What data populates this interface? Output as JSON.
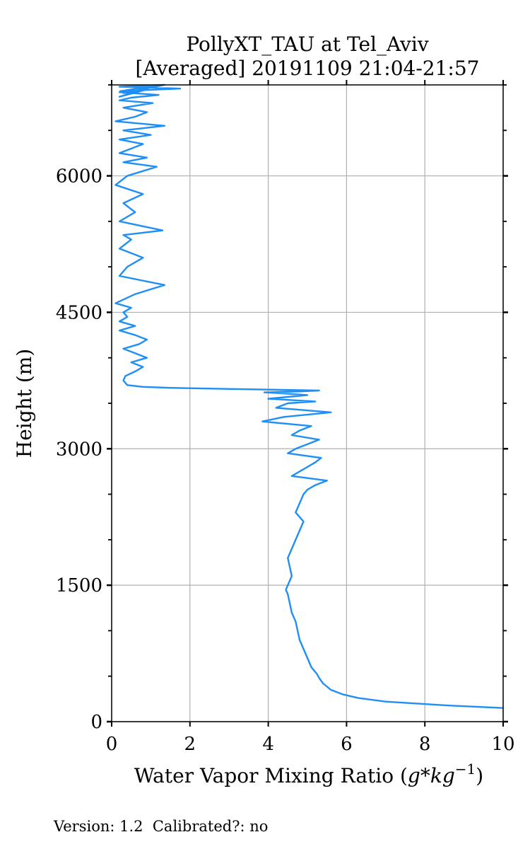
{
  "chart_data": {
    "type": "line",
    "title": "PollyXT_TAU at Tel_Aviv",
    "subtitle": "[Averaged] 20191109 21:04-21:57",
    "xlabel_text": "Water Vapor Mixing Ratio (",
    "xlabel_math": "g*kg",
    "xlabel_sup": "−1",
    "xlabel_close": ")",
    "ylabel": "Height (m)",
    "xlim": [
      0,
      10
    ],
    "ylim": [
      0,
      7000
    ],
    "xticks": [
      "0",
      "2",
      "4",
      "6",
      "8",
      "10"
    ],
    "yticks": [
      "0",
      "1500",
      "3000",
      "4500",
      "6000"
    ],
    "grid": true,
    "line_color": "#1f8ff5",
    "series": [
      {
        "x": [
          10.0,
          8.5,
          7.0,
          6.3,
          5.9,
          5.6,
          5.4,
          5.3,
          5.25,
          5.1,
          5.0,
          4.9,
          4.8,
          4.75,
          4.7,
          4.6,
          4.55,
          4.5,
          4.45,
          4.5,
          4.6,
          4.55,
          4.5,
          4.6,
          4.7,
          4.8,
          4.9,
          4.7,
          4.8,
          4.9,
          5.0,
          5.2,
          5.5,
          4.6,
          4.8,
          5.0,
          5.2,
          5.35,
          4.5,
          4.7,
          5.0,
          5.3,
          4.6,
          4.8,
          5.1,
          3.85,
          4.4,
          5.6,
          4.2,
          4.5,
          5.2,
          4.0,
          4.5,
          5.0,
          4.3,
          3.9,
          4.8,
          5.3,
          4.0,
          2.7,
          1.5,
          0.8,
          0.4,
          0.3,
          0.35,
          0.6,
          0.8,
          0.5,
          0.9,
          0.6,
          0.3,
          0.7,
          0.9,
          0.6,
          0.2,
          0.6,
          0.2,
          0.4,
          0.3,
          0.5,
          0.1,
          0.6,
          1.35,
          0.2,
          0.4,
          0.8,
          0.2,
          0.5,
          0.3,
          1.3,
          0.2,
          0.6,
          0.3,
          0.8,
          0.1,
          0.4,
          1.15,
          0.3,
          0.9,
          0.2,
          0.5,
          0.8,
          0.2,
          1.0,
          0.3,
          1.35,
          0.1,
          0.6,
          0.9,
          0.3,
          1.05,
          0.2,
          0.5,
          1.2,
          0.2,
          0.7,
          1.75,
          0.2,
          1.35,
          0.3,
          0.9,
          0.2,
          1.1,
          0.2
        ],
        "y": [
          150,
          180,
          220,
          260,
          300,
          350,
          420,
          480,
          520,
          600,
          700,
          800,
          900,
          1000,
          1100,
          1200,
          1300,
          1400,
          1450,
          1500,
          1600,
          1700,
          1800,
          1900,
          2000,
          2100,
          2200,
          2300,
          2400,
          2500,
          2550,
          2600,
          2650,
          2700,
          2750,
          2800,
          2850,
          2900,
          2950,
          3000,
          3050,
          3100,
          3150,
          3200,
          3250,
          3300,
          3350,
          3400,
          3450,
          3500,
          3520,
          3550,
          3570,
          3590,
          3610,
          3620,
          3630,
          3640,
          3650,
          3660,
          3670,
          3680,
          3700,
          3750,
          3800,
          3850,
          3900,
          3950,
          4000,
          4050,
          4100,
          4150,
          4200,
          4250,
          4300,
          4350,
          4400,
          4450,
          4500,
          4550,
          4600,
          4700,
          4800,
          4900,
          5000,
          5100,
          5200,
          5300,
          5350,
          5400,
          5500,
          5600,
          5700,
          5800,
          5900,
          6000,
          6100,
          6150,
          6200,
          6250,
          6300,
          6350,
          6400,
          6450,
          6500,
          6550,
          6600,
          6650,
          6700,
          6750,
          6800,
          6830,
          6860,
          6890,
          6920,
          6940,
          6960,
          6980,
          7000,
          6910,
          6950,
          6870,
          6990,
          6930
        ]
      }
    ]
  },
  "footer": {
    "version": "Version: 1.2  Calibrated?: no"
  }
}
